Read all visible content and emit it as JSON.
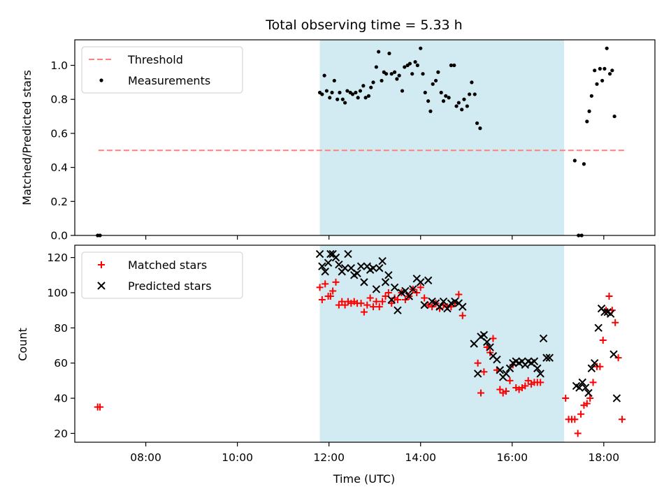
{
  "chart_data": [
    {
      "type": "scatter",
      "title": "Total observing time = 5.33 h",
      "xlabel": "",
      "ylabel": "Matched/Predicted stars",
      "xlim": [
        "06:27",
        "19:07"
      ],
      "ylim": [
        0,
        1.15
      ],
      "yticks": [
        "0.0",
        "0.2",
        "0.4",
        "0.6",
        "0.8",
        "1.0"
      ],
      "ytick_values": [
        0,
        0.2,
        0.4,
        0.6,
        0.8,
        1.0
      ],
      "shaded_span": [
        "11:48",
        "17:08"
      ],
      "shade_color": "#add8e6",
      "legend_position": "upper-left",
      "threshold": {
        "name": "Threshold",
        "value": 0.5,
        "x_range": [
          "06:58",
          "18:29"
        ],
        "color": "#ff7f7f"
      },
      "series": [
        {
          "name": "Measurements",
          "marker": "dot",
          "color": "#000000",
          "points": [
            [
              "06:57",
              0.0
            ],
            [
              "07:00",
              0.0
            ],
            [
              "11:48",
              0.84
            ],
            [
              "11:51",
              0.83
            ],
            [
              "11:54",
              0.94
            ],
            [
              "11:57",
              0.85
            ],
            [
              "12:01",
              0.81
            ],
            [
              "12:04",
              0.84
            ],
            [
              "12:07",
              0.91
            ],
            [
              "12:11",
              0.8
            ],
            [
              "12:14",
              0.84
            ],
            [
              "12:18",
              0.8
            ],
            [
              "12:21",
              0.78
            ],
            [
              "12:24",
              0.85
            ],
            [
              "12:28",
              0.84
            ],
            [
              "12:31",
              0.83
            ],
            [
              "12:35",
              0.84
            ],
            [
              "12:38",
              0.81
            ],
            [
              "12:41",
              0.85
            ],
            [
              "12:45",
              0.88
            ],
            [
              "12:48",
              0.81
            ],
            [
              "12:52",
              0.82
            ],
            [
              "12:55",
              0.87
            ],
            [
              "12:58",
              0.9
            ],
            [
              "13:02",
              0.99
            ],
            [
              "13:05",
              1.08
            ],
            [
              "13:09",
              0.91
            ],
            [
              "13:12",
              0.96
            ],
            [
              "13:15",
              0.95
            ],
            [
              "13:19",
              1.07
            ],
            [
              "13:22",
              0.95
            ],
            [
              "13:26",
              0.96
            ],
            [
              "13:29",
              0.92
            ],
            [
              "13:32",
              0.94
            ],
            [
              "13:36",
              0.85
            ],
            [
              "13:39",
              0.99
            ],
            [
              "13:43",
              1.0
            ],
            [
              "13:46",
              1.01
            ],
            [
              "13:49",
              0.95
            ],
            [
              "13:53",
              1.02
            ],
            [
              "13:56",
              1.0
            ],
            [
              "14:00",
              1.1
            ],
            [
              "14:03",
              0.95
            ],
            [
              "14:06",
              0.84
            ],
            [
              "14:10",
              0.79
            ],
            [
              "14:13",
              0.73
            ],
            [
              "14:16",
              0.89
            ],
            [
              "14:20",
              0.91
            ],
            [
              "14:23",
              0.96
            ],
            [
              "14:27",
              0.84
            ],
            [
              "14:30",
              0.79
            ],
            [
              "14:33",
              0.82
            ],
            [
              "14:37",
              0.81
            ],
            [
              "14:40",
              1.0
            ],
            [
              "14:44",
              1.0
            ],
            [
              "14:47",
              0.76
            ],
            [
              "14:50",
              0.78
            ],
            [
              "14:54",
              0.74
            ],
            [
              "14:57",
              0.8
            ],
            [
              "15:01",
              0.76
            ],
            [
              "15:04",
              0.83
            ],
            [
              "15:07",
              0.9
            ],
            [
              "15:11",
              0.83
            ],
            [
              "15:14",
              0.66
            ],
            [
              "15:18",
              0.63
            ],
            [
              "17:22",
              0.44
            ],
            [
              "17:27",
              0.0
            ],
            [
              "17:31",
              0.0
            ],
            [
              "17:34",
              0.42
            ],
            [
              "17:38",
              0.67
            ],
            [
              "17:41",
              0.73
            ],
            [
              "17:44",
              0.82
            ],
            [
              "17:48",
              0.97
            ],
            [
              "17:51",
              0.89
            ],
            [
              "17:55",
              0.98
            ],
            [
              "17:58",
              0.91
            ],
            [
              "18:01",
              0.98
            ],
            [
              "18:04",
              1.1
            ],
            [
              "18:08",
              0.95
            ],
            [
              "18:11",
              0.97
            ],
            [
              "18:14",
              0.7
            ]
          ]
        }
      ]
    },
    {
      "type": "scatter",
      "title": "",
      "xlabel": "Time (UTC)",
      "ylabel": "Count",
      "xlim": [
        "06:27",
        "19:07"
      ],
      "ylim": [
        15,
        127
      ],
      "yticks": [
        "20",
        "40",
        "60",
        "80",
        "100",
        "120"
      ],
      "ytick_values": [
        20,
        40,
        60,
        80,
        100,
        120
      ],
      "xticks": [
        "08:00",
        "10:00",
        "12:00",
        "14:00",
        "16:00",
        "18:00"
      ],
      "shaded_span": [
        "11:48",
        "17:08"
      ],
      "shade_color": "#add8e6",
      "legend_position": "upper-left",
      "series": [
        {
          "name": "Matched stars",
          "marker": "plus",
          "color": "#ff0000",
          "points": [
            [
              "06:57",
              35
            ],
            [
              "07:00",
              35
            ],
            [
              "11:48",
              103
            ],
            [
              "11:51",
              96
            ],
            [
              "11:55",
              105
            ],
            [
              "11:59",
              98
            ],
            [
              "12:02",
              98
            ],
            [
              "12:05",
              101
            ],
            [
              "12:09",
              106
            ],
            [
              "12:13",
              93
            ],
            [
              "12:17",
              95
            ],
            [
              "12:21",
              93
            ],
            [
              "12:25",
              95
            ],
            [
              "12:29",
              94
            ],
            [
              "12:33",
              95
            ],
            [
              "12:37",
              94
            ],
            [
              "12:42",
              94
            ],
            [
              "12:46",
              89
            ],
            [
              "12:50",
              93
            ],
            [
              "12:54",
              97
            ],
            [
              "12:58",
              92
            ],
            [
              "13:02",
              95
            ],
            [
              "13:06",
              92
            ],
            [
              "13:10",
              95
            ],
            [
              "13:14",
              98
            ],
            [
              "13:18",
              100
            ],
            [
              "13:22",
              94
            ],
            [
              "13:26",
              97
            ],
            [
              "13:30",
              96
            ],
            [
              "13:35",
              100
            ],
            [
              "13:40",
              96
            ],
            [
              "13:45",
              98
            ],
            [
              "13:50",
              102
            ],
            [
              "13:55",
              100
            ],
            [
              "14:00",
              103
            ],
            [
              "14:05",
              97
            ],
            [
              "14:10",
              93
            ],
            [
              "14:15",
              92
            ],
            [
              "14:20",
              94
            ],
            [
              "14:25",
              91
            ],
            [
              "14:30",
              93
            ],
            [
              "14:35",
              92
            ],
            [
              "14:40",
              92
            ],
            [
              "14:45",
              94
            ],
            [
              "14:50",
              99
            ],
            [
              "14:55",
              87
            ],
            [
              "15:15",
              60
            ],
            [
              "15:19",
              43
            ],
            [
              "15:23",
              55
            ],
            [
              "15:27",
              69
            ],
            [
              "15:31",
              66
            ],
            [
              "15:35",
              74
            ],
            [
              "15:40",
              56
            ],
            [
              "15:44",
              45
            ],
            [
              "15:48",
              43
            ],
            [
              "15:52",
              44
            ],
            [
              "15:57",
              50
            ],
            [
              "16:01",
              59
            ],
            [
              "16:05",
              46
            ],
            [
              "16:09",
              45
            ],
            [
              "16:13",
              46
            ],
            [
              "16:17",
              47
            ],
            [
              "16:21",
              50
            ],
            [
              "16:25",
              48
            ],
            [
              "16:29",
              49
            ],
            [
              "16:33",
              49
            ],
            [
              "16:37",
              49
            ],
            [
              "17:10",
              40
            ],
            [
              "17:14",
              28
            ],
            [
              "17:18",
              28
            ],
            [
              "17:22",
              28
            ],
            [
              "17:26",
              20
            ],
            [
              "17:30",
              31
            ],
            [
              "17:34",
              36
            ],
            [
              "17:38",
              37
            ],
            [
              "17:42",
              40
            ],
            [
              "17:46",
              49
            ],
            [
              "17:51",
              58
            ],
            [
              "17:55",
              58
            ],
            [
              "17:59",
              73
            ],
            [
              "18:03",
              90
            ],
            [
              "18:07",
              98
            ],
            [
              "18:11",
              90
            ],
            [
              "18:15",
              83
            ],
            [
              "18:19",
              63
            ],
            [
              "18:24",
              28
            ]
          ]
        },
        {
          "name": "Predicted stars",
          "marker": "x",
          "color": "#000000",
          "points": [
            [
              "11:48",
              122
            ],
            [
              "11:51",
              115
            ],
            [
              "11:55",
              112
            ],
            [
              "11:59",
              117
            ],
            [
              "12:02",
              122
            ],
            [
              "12:05",
              122
            ],
            [
              "12:09",
              120
            ],
            [
              "12:13",
              116
            ],
            [
              "12:17",
              112
            ],
            [
              "12:21",
              114
            ],
            [
              "12:25",
              122
            ],
            [
              "12:29",
              114
            ],
            [
              "12:33",
              110
            ],
            [
              "12:37",
              111
            ],
            [
              "12:42",
              115
            ],
            [
              "12:46",
              106
            ],
            [
              "12:50",
              115
            ],
            [
              "12:54",
              113
            ],
            [
              "12:58",
              114
            ],
            [
              "13:02",
              102
            ],
            [
              "13:06",
              114
            ],
            [
              "13:10",
              118
            ],
            [
              "13:14",
              106
            ],
            [
              "13:18",
              110
            ],
            [
              "13:22",
              96
            ],
            [
              "13:26",
              103
            ],
            [
              "13:30",
              90
            ],
            [
              "13:35",
              100
            ],
            [
              "13:40",
              101
            ],
            [
              "13:45",
              98
            ],
            [
              "13:50",
              102
            ],
            [
              "13:55",
              108
            ],
            [
              "14:00",
              106
            ],
            [
              "14:05",
              93
            ],
            [
              "14:10",
              107
            ],
            [
              "14:15",
              95
            ],
            [
              "14:20",
              94
            ],
            [
              "14:25",
              92
            ],
            [
              "14:30",
              95
            ],
            [
              "14:35",
              91
            ],
            [
              "14:40",
              94
            ],
            [
              "14:45",
              95
            ],
            [
              "14:50",
              94
            ],
            [
              "14:55",
              92
            ],
            [
              "15:10",
              71
            ],
            [
              "15:15",
              54
            ],
            [
              "15:19",
              75
            ],
            [
              "15:23",
              76
            ],
            [
              "15:27",
              72
            ],
            [
              "15:31",
              69
            ],
            [
              "15:35",
              64
            ],
            [
              "15:40",
              62
            ],
            [
              "15:44",
              56
            ],
            [
              "15:48",
              52
            ],
            [
              "15:52",
              54
            ],
            [
              "15:57",
              57
            ],
            [
              "16:01",
              60
            ],
            [
              "16:05",
              61
            ],
            [
              "16:09",
              60
            ],
            [
              "16:13",
              61
            ],
            [
              "16:17",
              59
            ],
            [
              "16:21",
              61
            ],
            [
              "16:25",
              60
            ],
            [
              "16:29",
              61
            ],
            [
              "16:33",
              57
            ],
            [
              "16:37",
              54
            ],
            [
              "16:41",
              74
            ],
            [
              "16:45",
              63
            ],
            [
              "16:49",
              63
            ],
            [
              "17:24",
              47
            ],
            [
              "17:28",
              46
            ],
            [
              "17:32",
              49
            ],
            [
              "17:36",
              46
            ],
            [
              "17:40",
              43
            ],
            [
              "17:44",
              57
            ],
            [
              "17:48",
              60
            ],
            [
              "17:53",
              80
            ],
            [
              "17:57",
              91
            ],
            [
              "18:01",
              89
            ],
            [
              "18:05",
              89
            ],
            [
              "18:09",
              88
            ],
            [
              "18:13",
              65
            ],
            [
              "18:17",
              40
            ]
          ]
        }
      ]
    }
  ]
}
